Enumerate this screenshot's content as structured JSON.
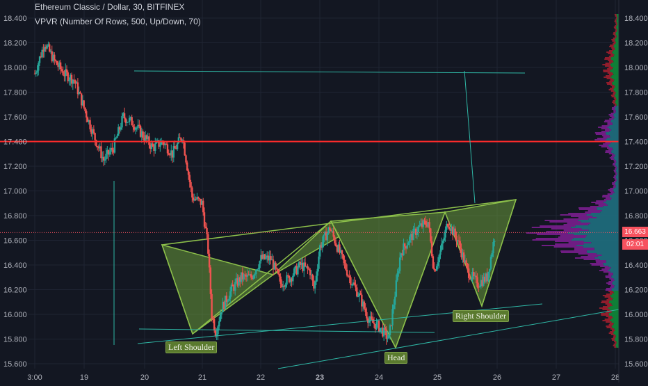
{
  "header": {
    "title": "Ethereum Classic / Dollar, 30, BITFINEX",
    "indicator": "VPVR (Number Of Rows, 500, Up/Down, 70)"
  },
  "price_tags": {
    "current_price": "16.663",
    "countdown": "02:01"
  },
  "pattern_labels": {
    "left_shoulder": "Left Shoulder",
    "head": "Head",
    "right_shoulder": "Right Shoulder"
  },
  "colors": {
    "background": "#131722",
    "candle_up": "#26a69a",
    "candle_down": "#ef5350",
    "resistance_line": "#ff2b2b",
    "pattern_fill": "#6a9a3a",
    "trendline": "#2fb8a6",
    "vp_up": "#0f8a3a",
    "vp_down": "#a01e2e",
    "vp_value_area_up": "#1f6f80",
    "vp_value_area_down": "#7a1e8e",
    "price_tag": "#f7525f"
  },
  "chart_data": {
    "type": "candlestick",
    "title": "Ethereum Classic / Dollar, 30, BITFINEX",
    "x_tick_labels": [
      "3:00",
      "19",
      "20",
      "21",
      "22",
      "23",
      "24",
      "25",
      "26",
      "27",
      "28"
    ],
    "y_tick_labels": [
      "18.400",
      "18.200",
      "18.000",
      "17.800",
      "17.600",
      "17.400",
      "17.200",
      "17.000",
      "16.800",
      "16.600",
      "16.400",
      "16.200",
      "16.000",
      "15.800",
      "15.600"
    ],
    "ylim": [
      15.58,
      18.48
    ],
    "grid": true,
    "horizontal_line": 17.4,
    "last_price": 16.663,
    "price_path": [
      [
        0.0,
        17.95
      ],
      [
        0.5,
        18.2
      ],
      [
        1.0,
        18.05
      ],
      [
        1.5,
        17.95
      ],
      [
        2.0,
        17.9
      ],
      [
        3.0,
        17.45
      ],
      [
        3.5,
        17.25
      ],
      [
        4.0,
        17.35
      ],
      [
        4.5,
        17.6
      ],
      [
        5.0,
        17.55
      ],
      [
        5.5,
        17.45
      ],
      [
        6.0,
        17.35
      ],
      [
        6.5,
        17.4
      ],
      [
        7.0,
        17.3
      ],
      [
        7.5,
        17.45
      ],
      [
        8.0,
        16.95
      ],
      [
        8.5,
        16.9
      ],
      [
        8.8,
        16.55
      ],
      [
        9.0,
        16.0
      ],
      [
        9.2,
        15.85
      ],
      [
        9.5,
        16.05
      ],
      [
        10.0,
        16.2
      ],
      [
        10.5,
        16.3
      ],
      [
        11.0,
        16.3
      ],
      [
        11.5,
        16.45
      ],
      [
        12.0,
        16.45
      ],
      [
        12.5,
        16.25
      ],
      [
        13.0,
        16.3
      ],
      [
        13.5,
        16.4
      ],
      [
        14.0,
        16.35
      ],
      [
        14.2,
        16.2
      ],
      [
        14.5,
        16.55
      ],
      [
        15.0,
        16.7
      ],
      [
        15.5,
        16.5
      ],
      [
        16.0,
        16.3
      ],
      [
        16.5,
        16.15
      ],
      [
        17.0,
        15.95
      ],
      [
        17.5,
        15.9
      ],
      [
        18.0,
        15.8
      ],
      [
        18.3,
        16.15
      ],
      [
        18.6,
        16.5
      ],
      [
        19.0,
        16.6
      ],
      [
        19.5,
        16.7
      ],
      [
        20.0,
        16.75
      ],
      [
        20.3,
        16.35
      ],
      [
        20.7,
        16.55
      ],
      [
        21.0,
        16.75
      ],
      [
        21.5,
        16.6
      ],
      [
        22.0,
        16.35
      ],
      [
        22.5,
        16.25
      ],
      [
        23.0,
        16.3
      ],
      [
        23.4,
        16.65
      ]
    ],
    "price_path_x_unit": "half-day bars from 3:00 (day 18)",
    "pattern": {
      "type": "inverse head and shoulders",
      "labels": [
        "Left Shoulder",
        "Head",
        "Right Shoulder"
      ]
    },
    "volume_profile": {
      "name": "VPVR (Number Of Rows, 500, Up/Down, 70)",
      "point_of_control_price": 16.66
    }
  }
}
